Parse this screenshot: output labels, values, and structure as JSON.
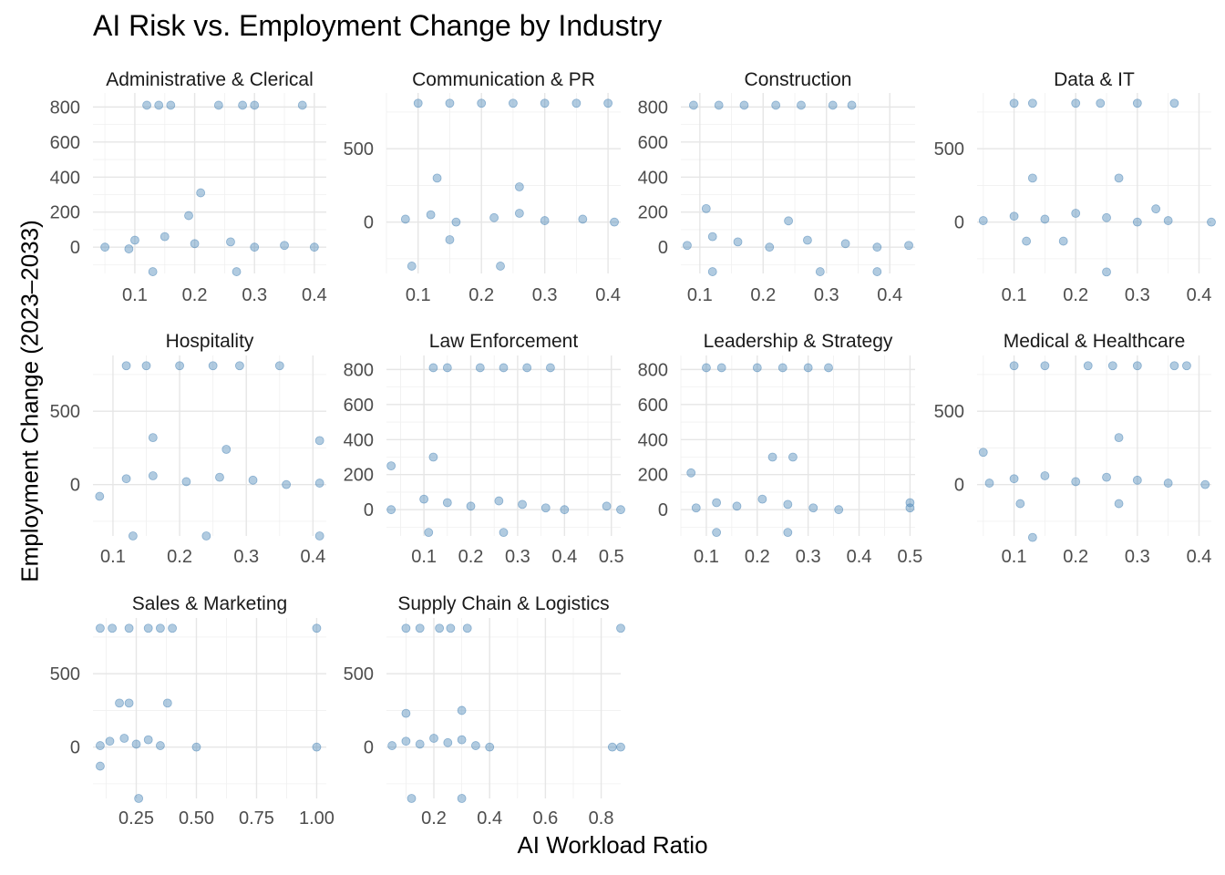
{
  "chart_data": {
    "type": "scatter",
    "title": "AI Risk vs. Employment Change by Industry",
    "xlabel": "AI Workload Ratio",
    "ylabel": "Employment Change (2023–2033)",
    "point_color": "#4682B4",
    "grid": true,
    "panels": [
      {
        "name": "Administrative & Clerical",
        "xlim": [
          0.03,
          0.42
        ],
        "ylim": [
          -150,
          880
        ],
        "xticks": [
          0.1,
          0.2,
          0.3,
          0.4
        ],
        "xtick_labels": [
          "0.1",
          "0.2",
          "0.3",
          "0.4"
        ],
        "yticks": [
          0,
          200,
          400,
          600,
          800
        ],
        "ytick_labels": [
          "0",
          "200",
          "400",
          "600",
          "800"
        ],
        "points": [
          [
            0.12,
            810
          ],
          [
            0.14,
            810
          ],
          [
            0.16,
            810
          ],
          [
            0.24,
            810
          ],
          [
            0.28,
            810
          ],
          [
            0.3,
            810
          ],
          [
            0.38,
            810
          ],
          [
            0.05,
            0
          ],
          [
            0.1,
            40
          ],
          [
            0.15,
            60
          ],
          [
            0.2,
            20
          ],
          [
            0.26,
            30
          ],
          [
            0.3,
            0
          ],
          [
            0.35,
            10
          ],
          [
            0.4,
            0
          ],
          [
            0.21,
            310
          ],
          [
            0.13,
            -140
          ],
          [
            0.27,
            -140
          ],
          [
            0.19,
            180
          ],
          [
            0.09,
            -10
          ]
        ]
      },
      {
        "name": "Communication & PR",
        "xlim": [
          0.05,
          0.42
        ],
        "ylim": [
          -350,
          880
        ],
        "xticks": [
          0.1,
          0.2,
          0.3,
          0.4
        ],
        "xtick_labels": [
          "0.1",
          "0.2",
          "0.3",
          "0.4"
        ],
        "yticks": [
          0,
          500
        ],
        "ytick_labels": [
          "0",
          "500"
        ],
        "points": [
          [
            0.1,
            810
          ],
          [
            0.15,
            810
          ],
          [
            0.2,
            810
          ],
          [
            0.25,
            810
          ],
          [
            0.3,
            810
          ],
          [
            0.35,
            810
          ],
          [
            0.4,
            810
          ],
          [
            0.08,
            20
          ],
          [
            0.12,
            50
          ],
          [
            0.16,
            0
          ],
          [
            0.22,
            30
          ],
          [
            0.26,
            60
          ],
          [
            0.3,
            10
          ],
          [
            0.36,
            20
          ],
          [
            0.41,
            0
          ],
          [
            0.13,
            300
          ],
          [
            0.26,
            240
          ],
          [
            0.09,
            -300
          ],
          [
            0.23,
            -300
          ],
          [
            0.15,
            -120
          ]
        ]
      },
      {
        "name": "Construction",
        "xlim": [
          0.07,
          0.44
        ],
        "ylim": [
          -150,
          880
        ],
        "xticks": [
          0.1,
          0.2,
          0.3,
          0.4
        ],
        "xtick_labels": [
          "0.1",
          "0.2",
          "0.3",
          "0.4"
        ],
        "yticks": [
          0,
          200,
          400,
          600,
          800
        ],
        "ytick_labels": [
          "0",
          "200",
          "400",
          "600",
          "800"
        ],
        "points": [
          [
            0.09,
            810
          ],
          [
            0.13,
            810
          ],
          [
            0.17,
            810
          ],
          [
            0.22,
            810
          ],
          [
            0.26,
            810
          ],
          [
            0.31,
            810
          ],
          [
            0.34,
            810
          ],
          [
            0.08,
            10
          ],
          [
            0.12,
            60
          ],
          [
            0.16,
            30
          ],
          [
            0.21,
            0
          ],
          [
            0.27,
            40
          ],
          [
            0.33,
            20
          ],
          [
            0.38,
            0
          ],
          [
            0.43,
            10
          ],
          [
            0.11,
            220
          ],
          [
            0.24,
            150
          ],
          [
            0.12,
            -140
          ],
          [
            0.29,
            -140
          ],
          [
            0.38,
            -140
          ]
        ]
      },
      {
        "name": "Data & IT",
        "xlim": [
          0.04,
          0.42
        ],
        "ylim": [
          -350,
          880
        ],
        "xticks": [
          0.1,
          0.2,
          0.3,
          0.4
        ],
        "xtick_labels": [
          "0.1",
          "0.2",
          "0.3",
          "0.4"
        ],
        "yticks": [
          0,
          500
        ],
        "ytick_labels": [
          "0",
          "500"
        ],
        "points": [
          [
            0.1,
            810
          ],
          [
            0.13,
            810
          ],
          [
            0.2,
            810
          ],
          [
            0.24,
            810
          ],
          [
            0.3,
            810
          ],
          [
            0.36,
            810
          ],
          [
            0.05,
            10
          ],
          [
            0.1,
            40
          ],
          [
            0.15,
            20
          ],
          [
            0.2,
            60
          ],
          [
            0.25,
            30
          ],
          [
            0.3,
            0
          ],
          [
            0.35,
            10
          ],
          [
            0.42,
            0
          ],
          [
            0.13,
            300
          ],
          [
            0.27,
            300
          ],
          [
            0.25,
            -340
          ],
          [
            0.12,
            -130
          ],
          [
            0.18,
            -130
          ],
          [
            0.33,
            90
          ]
        ]
      },
      {
        "name": "Hospitality",
        "xlim": [
          0.07,
          0.42
        ],
        "ylim": [
          -350,
          880
        ],
        "xticks": [
          0.1,
          0.2,
          0.3,
          0.4
        ],
        "xtick_labels": [
          "0.1",
          "0.2",
          "0.3",
          "0.4"
        ],
        "yticks": [
          0,
          500
        ],
        "ytick_labels": [
          "0",
          "500"
        ],
        "points": [
          [
            0.12,
            810
          ],
          [
            0.15,
            810
          ],
          [
            0.2,
            810
          ],
          [
            0.25,
            810
          ],
          [
            0.29,
            810
          ],
          [
            0.35,
            810
          ],
          [
            0.08,
            -80
          ],
          [
            0.12,
            40
          ],
          [
            0.16,
            60
          ],
          [
            0.21,
            20
          ],
          [
            0.26,
            50
          ],
          [
            0.31,
            30
          ],
          [
            0.36,
            0
          ],
          [
            0.41,
            10
          ],
          [
            0.16,
            320
          ],
          [
            0.27,
            240
          ],
          [
            0.13,
            -350
          ],
          [
            0.24,
            -350
          ],
          [
            0.41,
            -350
          ],
          [
            0.41,
            300
          ]
        ]
      },
      {
        "name": "Law Enforcement",
        "xlim": [
          0.02,
          0.52
        ],
        "ylim": [
          -150,
          880
        ],
        "xticks": [
          0.1,
          0.2,
          0.3,
          0.4,
          0.5
        ],
        "xtick_labels": [
          "0.1",
          "0.2",
          "0.3",
          "0.4",
          "0.5"
        ],
        "yticks": [
          0,
          200,
          400,
          600,
          800
        ],
        "ytick_labels": [
          "0",
          "200",
          "400",
          "600",
          "800"
        ],
        "points": [
          [
            0.12,
            810
          ],
          [
            0.15,
            810
          ],
          [
            0.22,
            810
          ],
          [
            0.27,
            810
          ],
          [
            0.32,
            810
          ],
          [
            0.37,
            810
          ],
          [
            0.03,
            0
          ],
          [
            0.03,
            250
          ],
          [
            0.1,
            60
          ],
          [
            0.15,
            40
          ],
          [
            0.2,
            20
          ],
          [
            0.26,
            50
          ],
          [
            0.31,
            30
          ],
          [
            0.36,
            10
          ],
          [
            0.4,
            0
          ],
          [
            0.49,
            20
          ],
          [
            0.52,
            0
          ],
          [
            0.12,
            300
          ],
          [
            0.11,
            -130
          ],
          [
            0.27,
            -130
          ]
        ]
      },
      {
        "name": "Leadership & Strategy",
        "xlim": [
          0.05,
          0.51
        ],
        "ylim": [
          -150,
          880
        ],
        "xticks": [
          0.1,
          0.2,
          0.3,
          0.4,
          0.5
        ],
        "xtick_labels": [
          "0.1",
          "0.2",
          "0.3",
          "0.4",
          "0.5"
        ],
        "yticks": [
          0,
          200,
          400,
          600,
          800
        ],
        "ytick_labels": [
          "0",
          "200",
          "400",
          "600",
          "800"
        ],
        "points": [
          [
            0.1,
            810
          ],
          [
            0.13,
            810
          ],
          [
            0.2,
            810
          ],
          [
            0.25,
            810
          ],
          [
            0.3,
            810
          ],
          [
            0.34,
            810
          ],
          [
            0.07,
            210
          ],
          [
            0.08,
            10
          ],
          [
            0.12,
            40
          ],
          [
            0.16,
            20
          ],
          [
            0.21,
            60
          ],
          [
            0.26,
            30
          ],
          [
            0.31,
            10
          ],
          [
            0.36,
            0
          ],
          [
            0.5,
            40
          ],
          [
            0.5,
            10
          ],
          [
            0.23,
            300
          ],
          [
            0.27,
            300
          ],
          [
            0.12,
            -130
          ],
          [
            0.26,
            -130
          ]
        ]
      },
      {
        "name": "Medical & Healthcare",
        "xlim": [
          0.04,
          0.42
        ],
        "ylim": [
          -350,
          880
        ],
        "xticks": [
          0.1,
          0.2,
          0.3,
          0.4
        ],
        "xtick_labels": [
          "0.1",
          "0.2",
          "0.3",
          "0.4"
        ],
        "yticks": [
          0,
          500
        ],
        "ytick_labels": [
          "0",
          "500"
        ],
        "points": [
          [
            0.1,
            810
          ],
          [
            0.15,
            810
          ],
          [
            0.22,
            810
          ],
          [
            0.26,
            810
          ],
          [
            0.3,
            810
          ],
          [
            0.36,
            810
          ],
          [
            0.38,
            810
          ],
          [
            0.05,
            220
          ],
          [
            0.06,
            10
          ],
          [
            0.1,
            40
          ],
          [
            0.15,
            60
          ],
          [
            0.2,
            20
          ],
          [
            0.25,
            50
          ],
          [
            0.3,
            30
          ],
          [
            0.35,
            10
          ],
          [
            0.41,
            0
          ],
          [
            0.27,
            320
          ],
          [
            0.13,
            -360
          ],
          [
            0.11,
            -130
          ],
          [
            0.27,
            -130
          ]
        ]
      },
      {
        "name": "Sales & Marketing",
        "xlim": [
          0.07,
          1.04
        ],
        "ylim": [
          -350,
          880
        ],
        "xticks": [
          0.25,
          0.5,
          0.75,
          1.0
        ],
        "xtick_labels": [
          "0.25",
          "0.50",
          "0.75",
          "1.00"
        ],
        "yticks": [
          0,
          500
        ],
        "ytick_labels": [
          "0",
          "500"
        ],
        "points": [
          [
            0.1,
            810
          ],
          [
            0.15,
            810
          ],
          [
            0.22,
            810
          ],
          [
            0.3,
            810
          ],
          [
            0.35,
            810
          ],
          [
            0.4,
            810
          ],
          [
            1.0,
            810
          ],
          [
            0.1,
            10
          ],
          [
            0.14,
            40
          ],
          [
            0.2,
            60
          ],
          [
            0.25,
            20
          ],
          [
            0.3,
            50
          ],
          [
            0.35,
            10
          ],
          [
            0.5,
            0
          ],
          [
            1.0,
            0
          ],
          [
            0.18,
            300
          ],
          [
            0.22,
            300
          ],
          [
            0.38,
            300
          ],
          [
            0.26,
            -350
          ],
          [
            0.1,
            -130
          ]
        ]
      },
      {
        "name": "Supply Chain & Logistics",
        "xlim": [
          0.03,
          0.87
        ],
        "ylim": [
          -350,
          880
        ],
        "xticks": [
          0.2,
          0.4,
          0.6,
          0.8
        ],
        "xtick_labels": [
          "0.2",
          "0.4",
          "0.6",
          "0.8"
        ],
        "yticks": [
          0,
          500
        ],
        "ytick_labels": [
          "0",
          "500"
        ],
        "points": [
          [
            0.1,
            810
          ],
          [
            0.15,
            810
          ],
          [
            0.22,
            810
          ],
          [
            0.26,
            810
          ],
          [
            0.32,
            810
          ],
          [
            0.87,
            810
          ],
          [
            0.05,
            10
          ],
          [
            0.1,
            40
          ],
          [
            0.15,
            20
          ],
          [
            0.2,
            60
          ],
          [
            0.25,
            30
          ],
          [
            0.3,
            50
          ],
          [
            0.35,
            10
          ],
          [
            0.4,
            0
          ],
          [
            0.84,
            0
          ],
          [
            0.87,
            0
          ],
          [
            0.1,
            230
          ],
          [
            0.3,
            250
          ],
          [
            0.12,
            -350
          ],
          [
            0.3,
            -350
          ]
        ]
      }
    ]
  }
}
